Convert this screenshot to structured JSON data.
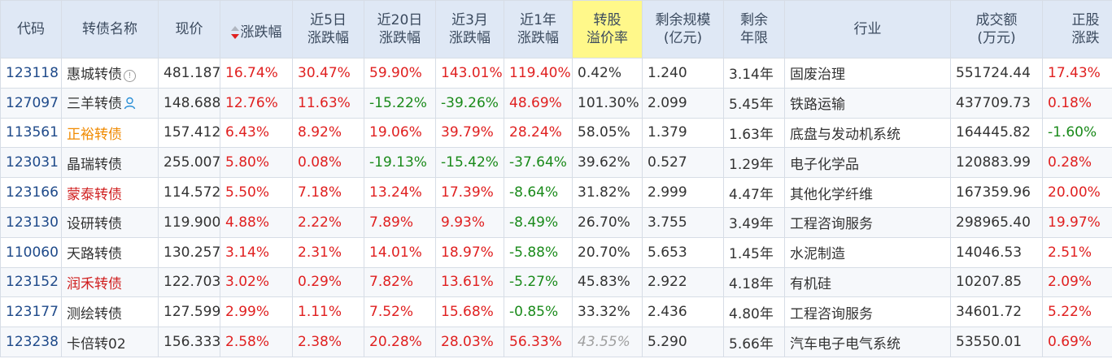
{
  "headers": [
    [
      "代码"
    ],
    [
      "转债名称"
    ],
    [
      "现价"
    ],
    [
      "涨跌幅"
    ],
    [
      "近5日",
      "涨跌幅"
    ],
    [
      "近20日",
      "涨跌幅"
    ],
    [
      "近3月",
      "涨跌幅"
    ],
    [
      "近1年",
      "涨跌幅"
    ],
    [
      "转股",
      "溢价率"
    ],
    [
      "剩余规模",
      "(亿元)"
    ],
    [
      "剩余",
      "年限"
    ],
    [
      "行业"
    ],
    [
      "成交额",
      "(万元)"
    ],
    [
      "正股",
      "涨跌"
    ]
  ],
  "sort": {
    "column": "涨跌幅",
    "direction": "desc"
  },
  "highlight_header_color": "#fff88a",
  "rows": [
    {
      "code": "123118",
      "name": "惠城转债",
      "name_color": "default",
      "name_icon": "info-icon",
      "price": "481.187",
      "chg": "16.74%",
      "chg5": "30.47%",
      "chg20": "59.90%",
      "chg3m": "143.01%",
      "chg1y": "119.40%",
      "premium": "0.42%",
      "size": "1.240",
      "years": "3.14年",
      "industry": "固废治理",
      "turnover": "551724.44",
      "stock_chg": "17.43%"
    },
    {
      "code": "127097",
      "name": "三羊转债",
      "name_color": "default",
      "name_icon": "user-icon",
      "price": "148.688",
      "chg": "12.76%",
      "chg5": "11.63%",
      "chg20": "-15.22%",
      "chg3m": "-39.26%",
      "chg1y": "48.69%",
      "premium": "101.30%",
      "size": "2.099",
      "years": "5.45年",
      "industry": "铁路运输",
      "turnover": "437709.73",
      "stock_chg": "0.18%"
    },
    {
      "code": "113561",
      "name": "正裕转债",
      "name_color": "#f08a00",
      "name_icon": "",
      "price": "157.412",
      "chg": "6.43%",
      "chg5": "8.92%",
      "chg20": "19.06%",
      "chg3m": "39.79%",
      "chg1y": "28.24%",
      "premium": "58.05%",
      "size": "1.379",
      "years": "1.63年",
      "industry": "底盘与发动机系统",
      "turnover": "164445.82",
      "stock_chg": "-1.60%"
    },
    {
      "code": "123031",
      "name": "晶瑞转债",
      "name_color": "default",
      "name_icon": "",
      "price": "255.007",
      "chg": "5.80%",
      "chg5": "0.08%",
      "chg20": "-19.13%",
      "chg3m": "-15.42%",
      "chg1y": "-37.64%",
      "premium": "39.62%",
      "size": "0.527",
      "years": "1.29年",
      "industry": "电子化学品",
      "turnover": "120883.99",
      "stock_chg": "0.28%"
    },
    {
      "code": "123166",
      "name": "蒙泰转债",
      "name_color": "#d02020",
      "name_icon": "",
      "price": "114.572",
      "chg": "5.50%",
      "chg5": "7.18%",
      "chg20": "13.24%",
      "chg3m": "17.39%",
      "chg1y": "-8.64%",
      "premium": "31.82%",
      "size": "2.999",
      "years": "4.47年",
      "industry": "其他化学纤维",
      "turnover": "167359.96",
      "stock_chg": "20.00%"
    },
    {
      "code": "123130",
      "name": "设研转债",
      "name_color": "default",
      "name_icon": "",
      "price": "119.900",
      "chg": "4.88%",
      "chg5": "2.22%",
      "chg20": "7.89%",
      "chg3m": "9.93%",
      "chg1y": "-8.49%",
      "premium": "26.70%",
      "size": "3.755",
      "years": "3.49年",
      "industry": "工程咨询服务",
      "turnover": "298965.40",
      "stock_chg": "19.97%"
    },
    {
      "code": "110060",
      "name": "天路转债",
      "name_color": "default",
      "name_icon": "",
      "price": "130.257",
      "chg": "3.14%",
      "chg5": "2.31%",
      "chg20": "14.01%",
      "chg3m": "18.97%",
      "chg1y": "-5.88%",
      "premium": "20.70%",
      "size": "5.653",
      "years": "1.45年",
      "industry": "水泥制造",
      "turnover": "14046.53",
      "stock_chg": "2.51%"
    },
    {
      "code": "123152",
      "name": "润禾转债",
      "name_color": "#d02020",
      "name_icon": "",
      "price": "122.703",
      "chg": "3.02%",
      "chg5": "0.29%",
      "chg20": "7.82%",
      "chg3m": "13.61%",
      "chg1y": "-5.27%",
      "premium": "45.83%",
      "size": "2.922",
      "years": "4.18年",
      "industry": "有机硅",
      "turnover": "10207.85",
      "stock_chg": "2.09%"
    },
    {
      "code": "123177",
      "name": "测绘转债",
      "name_color": "default",
      "name_icon": "",
      "price": "127.599",
      "chg": "2.99%",
      "chg5": "1.11%",
      "chg20": "7.52%",
      "chg3m": "15.68%",
      "chg1y": "-0.85%",
      "premium": "33.32%",
      "size": "2.436",
      "years": "4.80年",
      "industry": "工程咨询服务",
      "turnover": "34601.72",
      "stock_chg": "5.22%"
    },
    {
      "code": "123238",
      "name": "卡倍转02",
      "name_color": "default",
      "name_icon": "",
      "price": "156.333",
      "chg": "2.58%",
      "chg5": "2.38%",
      "chg20": "20.28%",
      "chg3m": "28.03%",
      "chg1y": "56.33%",
      "premium": "43.55%",
      "premium_style": "muted",
      "size": "5.290",
      "years": "5.66年",
      "industry": "汽车电子电气系统",
      "turnover": "53550.01",
      "stock_chg": "0.69%"
    }
  ],
  "colors": {
    "up": "#e02020",
    "down": "#1a8a1a",
    "code": "#1f4a8a"
  }
}
